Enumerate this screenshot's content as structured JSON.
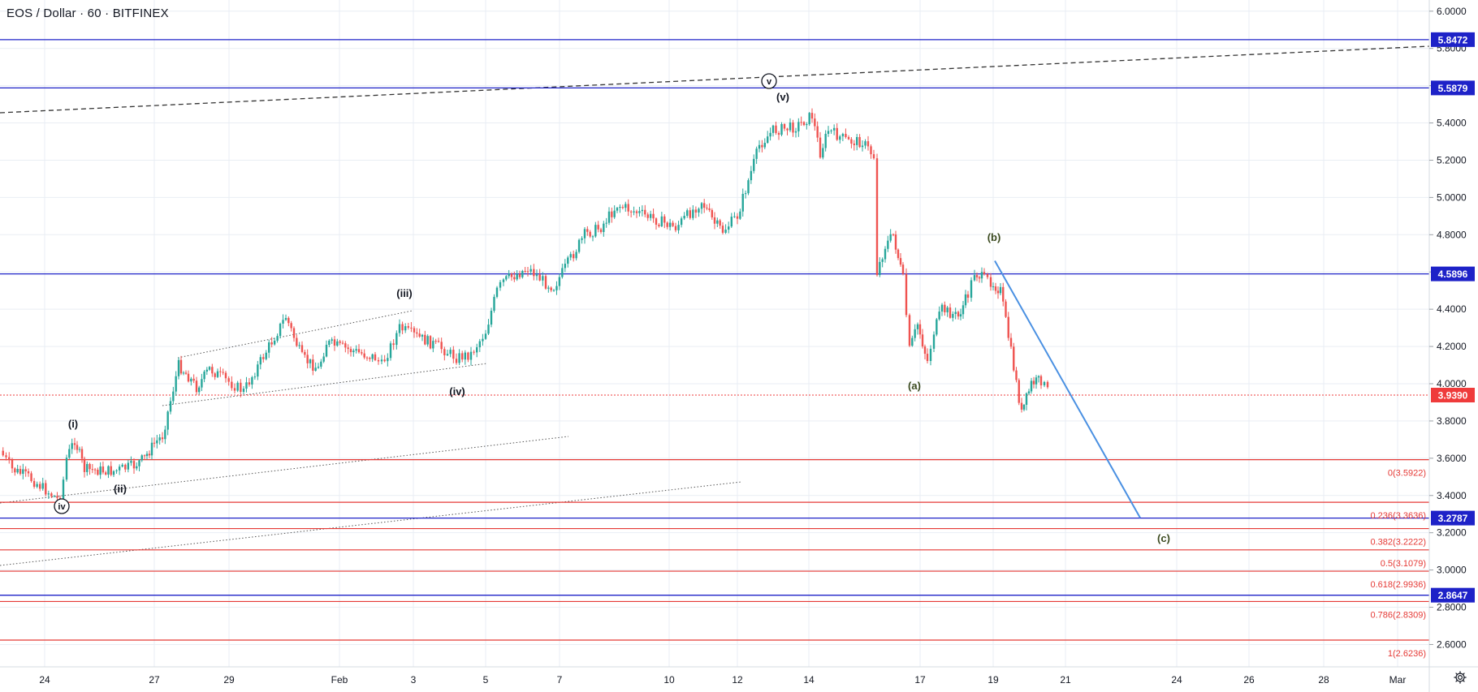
{
  "header": {
    "title": "EOS / Dollar · 60 · BITFINEX"
  },
  "colors": {
    "up": "#26a69a",
    "down": "#ef5350",
    "blue_level": "#1e22c8",
    "red_level": "#ef3b3b",
    "fib": "#e53935",
    "grid": "#e9eef4",
    "forecast": "#4a90e2",
    "axis_text": "#131722"
  },
  "icons": {
    "settings": "gear-icon"
  },
  "chart_data": {
    "type": "candlestick",
    "symbol": "EOS / Dollar",
    "interval": "60",
    "exchange": "BITFINEX",
    "ylim": [
      2.48,
      6.06
    ],
    "grid": true,
    "price_ticks": [
      "6.0000",
      "5.8000",
      "5.6000",
      "5.4000",
      "5.2000",
      "5.0000",
      "4.8000",
      "4.6000",
      "4.4000",
      "4.2000",
      "4.0000",
      "3.8000",
      "3.6000",
      "3.4000",
      "3.2000",
      "3.0000",
      "2.8000",
      "2.6000"
    ],
    "x_ticks": [
      "24",
      "27",
      "29",
      "Feb",
      "3",
      "5",
      "7",
      "10",
      "12",
      "14",
      "17",
      "19",
      "21",
      "24",
      "26",
      "28",
      "Mar"
    ],
    "price_path": [
      [
        "24",
        3.64
      ],
      [
        "24",
        3.54
      ],
      [
        "24",
        3.5
      ],
      [
        "24",
        3.37
      ],
      [
        "24",
        3.6
      ],
      [
        "24",
        3.7
      ],
      [
        "24",
        3.54
      ],
      [
        "24",
        3.53
      ],
      [
        "24",
        3.56
      ],
      [
        "27",
        3.6
      ],
      [
        "27",
        3.68
      ],
      [
        "27",
        3.72
      ],
      [
        "27",
        4.1
      ],
      [
        "27",
        4.04
      ],
      [
        "29",
        3.98
      ],
      [
        "29",
        4.08
      ],
      [
        "29",
        4.02
      ],
      [
        "29",
        3.96
      ],
      [
        "Feb",
        4.36
      ],
      [
        "Feb",
        4.14
      ],
      [
        "Feb",
        4.08
      ],
      [
        "Feb",
        4.22
      ],
      [
        "Feb",
        4.14
      ],
      [
        "Feb",
        4.1
      ],
      [
        "3",
        4.3
      ],
      [
        "3",
        4.26
      ],
      [
        "3",
        4.2
      ],
      [
        "3",
        4.14
      ],
      [
        "5",
        4.16
      ],
      [
        "5",
        4.28
      ],
      [
        "5",
        4.5
      ],
      [
        "5",
        4.55
      ],
      [
        "7",
        4.62
      ],
      [
        "7",
        4.54
      ],
      [
        "7",
        4.52
      ],
      [
        "7",
        4.8
      ],
      [
        "7",
        4.84
      ],
      [
        "10",
        4.96
      ],
      [
        "10",
        4.88
      ],
      [
        "10",
        4.84
      ],
      [
        "10",
        4.98
      ],
      [
        "10",
        4.86
      ],
      [
        "12",
        4.82
      ],
      [
        "12",
        4.9
      ],
      [
        "12",
        5.28
      ],
      [
        "12",
        5.36
      ],
      [
        "12",
        5.38
      ],
      [
        "12",
        5.44
      ],
      [
        "14",
        5.24
      ],
      [
        "14",
        5.36
      ],
      [
        "14",
        5.3
      ],
      [
        "14",
        5.3
      ],
      [
        "14",
        5.22
      ],
      [
        "14",
        4.6
      ],
      [
        "14",
        4.74
      ],
      [
        "14",
        4.8
      ],
      [
        "17",
        4.56
      ],
      [
        "17",
        4.18
      ],
      [
        "17",
        4.32
      ],
      [
        "17",
        4.12
      ],
      [
        "17",
        4.28
      ],
      [
        "17",
        4.4
      ],
      [
        "19",
        4.36
      ],
      [
        "19",
        4.48
      ],
      [
        "19",
        4.6
      ],
      [
        "19",
        4.56
      ],
      [
        "19",
        4.55
      ],
      [
        "19",
        4.5
      ],
      [
        "19",
        3.84
      ],
      [
        "19",
        4.0
      ],
      [
        "19",
        4.02
      ],
      [
        "19",
        3.96
      ]
    ],
    "horizontal_levels": [
      {
        "price": 5.8472,
        "label": "5.8472",
        "kind": "blue"
      },
      {
        "price": 5.5879,
        "label": "5.5879",
        "kind": "blue"
      },
      {
        "price": 4.5896,
        "label": "4.5896",
        "kind": "blue"
      },
      {
        "price": 3.2787,
        "label": "3.2787",
        "kind": "blue"
      },
      {
        "price": 2.8647,
        "label": "2.8647",
        "kind": "blue"
      }
    ],
    "current_price": {
      "price": 3.939,
      "label": "3.9390"
    },
    "fib_levels": [
      {
        "price": 3.5922,
        "label": "0(3.5922)"
      },
      {
        "price": 3.3636,
        "label": "0.236(3.3636)"
      },
      {
        "price": 3.2222,
        "label": "0.382(3.2222)"
      },
      {
        "price": 3.1079,
        "label": "0.5(3.1079)"
      },
      {
        "price": 2.9936,
        "label": "0.618(2.9936)"
      },
      {
        "price": 2.8309,
        "label": "0.786(2.8309)"
      },
      {
        "price": 2.6236,
        "label": "1(2.6236)"
      }
    ],
    "wave_labels": [
      {
        "text": "(i)",
        "x": "24",
        "price": 3.7,
        "pos": "above"
      },
      {
        "text": "(ii)",
        "x": "24",
        "price": 3.42,
        "pos": "below"
      },
      {
        "text": "(iii)",
        "x": "3",
        "price": 4.38,
        "pos": "above"
      },
      {
        "text": "(iv)",
        "x": "3",
        "price": 4.08,
        "pos": "below"
      },
      {
        "text": "(v)",
        "x": "12",
        "price": 5.46,
        "pos": "above"
      },
      {
        "text": "(a)",
        "x": "17",
        "price": 4.05,
        "pos": "below"
      },
      {
        "text": "(b)",
        "x": "19",
        "price": 4.66,
        "pos": "above"
      },
      {
        "text": "(c)",
        "x": "21",
        "price": 3.22,
        "pos": "below"
      }
    ],
    "circled_labels": [
      {
        "text": "iv",
        "x": "24",
        "price": 3.37
      },
      {
        "text": "v",
        "x": "12",
        "price": 5.46
      }
    ],
    "forecast_line": {
      "from": [
        "19",
        4.66
      ],
      "to": [
        "21",
        3.28
      ]
    },
    "trendlines": [
      {
        "style": "dashed",
        "from": [
          "24",
          5.45
        ],
        "to": [
          "Mar",
          5.82
        ]
      },
      {
        "style": "dotted",
        "from": [
          "27",
          4.12
        ],
        "to": [
          "3",
          4.38
        ]
      },
      {
        "style": "dotted",
        "from": [
          "27",
          3.86
        ],
        "to": [
          "5",
          4.09
        ]
      },
      {
        "style": "dotted",
        "from": [
          "24",
          3.32
        ],
        "to": [
          "7",
          3.7
        ]
      },
      {
        "style": "dotted",
        "from": [
          "24",
          2.99
        ],
        "to": [
          "10",
          3.44
        ]
      }
    ]
  }
}
